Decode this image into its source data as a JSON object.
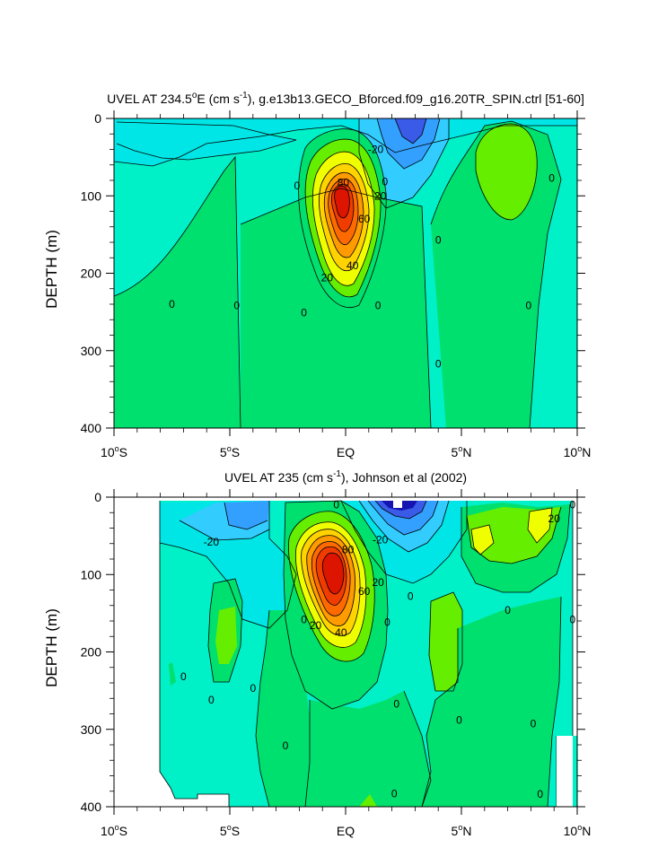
{
  "chart_data": [
    {
      "type": "contour",
      "title_prefix": "UVEL AT 234.5",
      "title_deg": "o",
      "title_mid": "E (cm s",
      "title_sup": "-1",
      "title_suffix": "), g.e13b13.GECO_Bforced.f09_g16.20TR_SPIN.ctrl [51-60]",
      "ylabel": "DEPTH (m)",
      "ylim": [
        400,
        0
      ],
      "xlim": [
        -10,
        10
      ],
      "yticks": [
        "0",
        "100",
        "200",
        "300",
        "400"
      ],
      "xticks": [
        {
          "v": "10",
          "deg": "o",
          "h": "S"
        },
        {
          "v": "5",
          "deg": "o",
          "h": "S"
        },
        {
          "v": "EQ",
          "deg": "",
          "h": ""
        },
        {
          "v": "5",
          "deg": "o",
          "h": "N"
        },
        {
          "v": "10",
          "deg": "o",
          "h": "N"
        }
      ],
      "contour_interval": 10,
      "data_columns": [
        -8,
        -5.5,
        -3.5,
        -2,
        -1,
        0,
        1,
        2,
        3,
        4.5,
        6,
        8,
        10
      ],
      "contour_labels": [
        {
          "text": "80",
          "x": -0.1,
          "y": 83
        },
        {
          "text": "60",
          "x": 0.8,
          "y": 130
        },
        {
          "text": "40",
          "x": 0.3,
          "y": 190
        },
        {
          "text": "20",
          "x": -0.8,
          "y": 206
        },
        {
          "text": "20",
          "x": 1.5,
          "y": 100
        },
        {
          "text": "0",
          "x": 1.7,
          "y": 82
        },
        {
          "text": "-20",
          "x": 1.3,
          "y": 40
        },
        {
          "text": "0",
          "x": -2.1,
          "y": 87
        },
        {
          "text": "0",
          "x": 4.0,
          "y": 157
        },
        {
          "text": "0",
          "x": 8.9,
          "y": 77
        },
        {
          "text": "0",
          "x": -7.5,
          "y": 240
        },
        {
          "text": "0",
          "x": -4.7,
          "y": 242
        },
        {
          "text": "0",
          "x": -1.8,
          "y": 251
        },
        {
          "text": "0",
          "x": 1.4,
          "y": 242
        },
        {
          "text": "0",
          "x": 7.9,
          "y": 242
        },
        {
          "text": "0",
          "x": 4.0,
          "y": 317
        }
      ]
    },
    {
      "type": "contour",
      "title_prefix": "UVEL AT 235 (cm s",
      "title_deg": "",
      "title_mid": "",
      "title_sup": "-1",
      "title_suffix": "), Johnson et al (2002)",
      "ylabel": "DEPTH (m)",
      "ylim": [
        400,
        0
      ],
      "xlim": [
        -10,
        10
      ],
      "yticks": [
        "0",
        "100",
        "200",
        "300",
        "400"
      ],
      "xticks": [
        {
          "v": "10",
          "deg": "o",
          "h": "S"
        },
        {
          "v": "5",
          "deg": "o",
          "h": "S"
        },
        {
          "v": "EQ",
          "deg": "",
          "h": ""
        },
        {
          "v": "5",
          "deg": "o",
          "h": "N"
        },
        {
          "v": "10",
          "deg": "o",
          "h": "N"
        }
      ],
      "contour_interval": 10,
      "data_columns": [
        -8,
        -5.5,
        -3.5,
        -2,
        -1,
        0,
        1,
        2,
        3,
        4.5,
        6,
        8,
        10
      ],
      "contour_labels": [
        {
          "text": "0",
          "x": -0.4,
          "y": 10
        },
        {
          "text": "-20",
          "x": -5.8,
          "y": 58
        },
        {
          "text": "-20",
          "x": 1.5,
          "y": 55
        },
        {
          "text": "80",
          "x": 0.1,
          "y": 68
        },
        {
          "text": "60",
          "x": 0.8,
          "y": 122
        },
        {
          "text": "20",
          "x": 1.4,
          "y": 110
        },
        {
          "text": "20",
          "x": 9.0,
          "y": 28
        },
        {
          "text": "0",
          "x": 9.8,
          "y": 10
        },
        {
          "text": "40",
          "x": -0.2,
          "y": 175
        },
        {
          "text": "20",
          "x": -1.3,
          "y": 166
        },
        {
          "text": "0",
          "x": 2.8,
          "y": 128
        },
        {
          "text": "0",
          "x": -1.8,
          "y": 158
        },
        {
          "text": "0",
          "x": 1.8,
          "y": 162
        },
        {
          "text": "0",
          "x": 7.0,
          "y": 146
        },
        {
          "text": "0",
          "x": 9.8,
          "y": 158
        },
        {
          "text": "0",
          "x": -7.0,
          "y": 232
        },
        {
          "text": "0",
          "x": -5.8,
          "y": 262
        },
        {
          "text": "0",
          "x": -4.0,
          "y": 247
        },
        {
          "text": "0",
          "x": 2.2,
          "y": 267
        },
        {
          "text": "0",
          "x": -2.6,
          "y": 321
        },
        {
          "text": "0",
          "x": 4.9,
          "y": 288
        },
        {
          "text": "0",
          "x": 8.1,
          "y": 293
        },
        {
          "text": "0",
          "x": 2.1,
          "y": 383
        },
        {
          "text": "0",
          "x": 8.4,
          "y": 384
        }
      ]
    }
  ],
  "colors": {
    "scale": [
      "#1414b0",
      "#3a5ae8",
      "#33a0ff",
      "#33ccff",
      "#00e6e6",
      "#00f0c8",
      "#00e06e",
      "#66ee00",
      "#f0ff00",
      "#ffd200",
      "#ff9a00",
      "#ff6a00",
      "#f03c00",
      "#dc1400"
    ]
  }
}
